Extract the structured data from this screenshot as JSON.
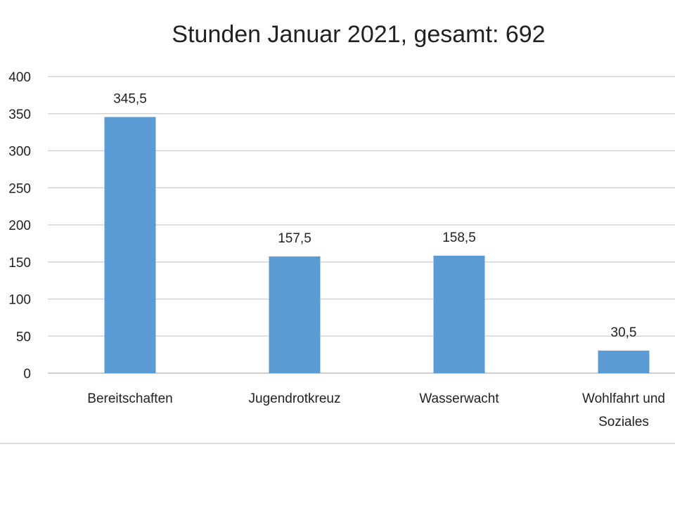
{
  "chart_data": {
    "type": "bar",
    "title": "Stunden Januar 2021, gesamt: 692",
    "categories": [
      [
        "Bereitschaften"
      ],
      [
        "Jugendrotkreuz"
      ],
      [
        "Wasserwacht"
      ],
      [
        "Wohlfahrt und",
        "Soziales"
      ]
    ],
    "values": [
      345.5,
      157.5,
      158.5,
      30.5
    ],
    "data_labels": [
      "345,5",
      "157,5",
      "158,5",
      "30,5"
    ],
    "yticks": [
      0,
      50,
      100,
      150,
      200,
      250,
      300,
      350,
      400
    ],
    "ylim": [
      0,
      400
    ],
    "xlabel": "",
    "ylabel": "",
    "grid": true,
    "legend": "none",
    "bar_color": "#5b9bd5"
  }
}
